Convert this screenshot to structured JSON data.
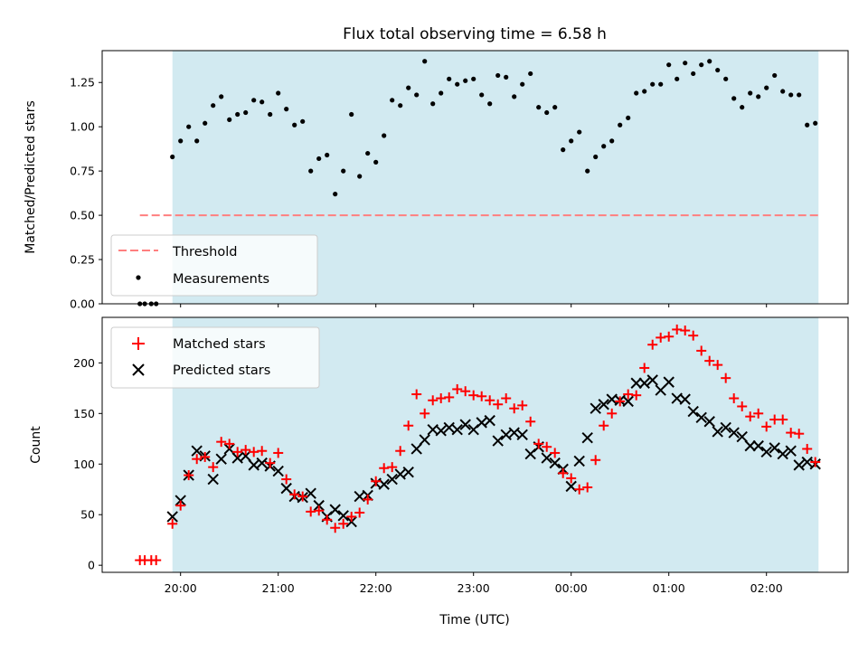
{
  "chart_data": [
    {
      "panel": "top",
      "type": "scatter",
      "title": "Flux total observing time = 6.58 h",
      "ylabel": "Matched/Predicted stars",
      "ylim": [
        0,
        1.43
      ],
      "yticks": [
        "0.00",
        "0.25",
        "0.50",
        "0.75",
        "1.00",
        "1.25"
      ],
      "ytick_values": [
        0,
        0.25,
        0.5,
        0.75,
        1.0,
        1.25
      ],
      "grid": false,
      "legend_position": "lower-left",
      "observing_window_color": "#add8e6",
      "threshold": {
        "name": "Threshold",
        "value": 0.5,
        "color": "#ff7f7f",
        "style": "dashed"
      },
      "series": [
        {
          "name": "Measurements",
          "color": "#000000",
          "x": [
            "19:35",
            "19:38",
            "19:42",
            "19:45",
            "19:55",
            "20:00",
            "20:05",
            "20:10",
            "20:15",
            "20:20",
            "20:25",
            "20:30",
            "20:35",
            "20:40",
            "20:45",
            "20:50",
            "20:55",
            "21:00",
            "21:05",
            "21:10",
            "21:15",
            "21:20",
            "21:25",
            "21:30",
            "21:35",
            "21:40",
            "21:45",
            "21:50",
            "21:55",
            "22:00",
            "22:05",
            "22:10",
            "22:15",
            "22:20",
            "22:25",
            "22:30",
            "22:35",
            "22:40",
            "22:45",
            "22:50",
            "22:55",
            "23:00",
            "23:05",
            "23:10",
            "23:15",
            "23:20",
            "23:25",
            "23:30",
            "23:35",
            "23:40",
            "23:45",
            "23:50",
            "23:55",
            "00:00",
            "00:05",
            "00:10",
            "00:15",
            "00:20",
            "00:25",
            "00:30",
            "00:35",
            "00:40",
            "00:45",
            "00:50",
            "00:55",
            "01:00",
            "01:05",
            "01:10",
            "01:15",
            "01:20",
            "01:25",
            "01:30",
            "01:35",
            "01:40",
            "01:45",
            "01:50",
            "01:55",
            "02:00",
            "02:05",
            "02:10",
            "02:15",
            "02:20",
            "02:25",
            "02:30"
          ],
          "y": [
            0.0,
            0.0,
            0.0,
            0.0,
            0.83,
            0.92,
            1.0,
            0.92,
            1.02,
            1.12,
            1.17,
            1.04,
            1.07,
            1.08,
            1.15,
            1.14,
            1.07,
            1.19,
            1.1,
            1.01,
            1.03,
            0.75,
            0.82,
            0.84,
            0.62,
            0.75,
            1.07,
            0.72,
            0.85,
            0.8,
            0.95,
            1.15,
            1.12,
            1.22,
            1.18,
            1.37,
            1.13,
            1.19,
            1.27,
            1.24,
            1.26,
            1.27,
            1.18,
            1.13,
            1.29,
            1.28,
            1.17,
            1.24,
            1.3,
            1.11,
            1.08,
            1.11,
            0.87,
            0.92,
            0.97,
            0.75,
            0.83,
            0.89,
            0.92,
            1.01,
            1.05,
            1.19,
            1.2,
            1.24,
            1.24,
            1.35,
            1.27,
            1.36,
            1.3,
            1.35,
            1.37,
            1.32,
            1.27,
            1.16,
            1.11,
            1.19,
            1.17,
            1.22,
            1.29,
            1.2,
            1.18,
            1.18,
            1.01,
            1.02
          ]
        }
      ]
    },
    {
      "panel": "bottom",
      "type": "scatter",
      "xlabel": "Time (UTC)",
      "ylabel": "Count",
      "ylim": [
        -7,
        245
      ],
      "yticks": [
        "0",
        "50",
        "100",
        "150",
        "200"
      ],
      "ytick_values": [
        0,
        50,
        100,
        150,
        200
      ],
      "xticks": [
        "20:00",
        "21:00",
        "22:00",
        "23:00",
        "00:00",
        "01:00",
        "02:00"
      ],
      "xtick_values": [
        "20:00",
        "21:00",
        "22:00",
        "23:00",
        "00:00",
        "01:00",
        "02:00"
      ],
      "grid": false,
      "legend_position": "upper-left",
      "series": [
        {
          "name": "Matched stars",
          "marker": "plus",
          "color": "#ff0000",
          "x": [
            "19:35",
            "19:38",
            "19:42",
            "19:45",
            "19:55",
            "20:00",
            "20:05",
            "20:10",
            "20:15",
            "20:20",
            "20:25",
            "20:30",
            "20:35",
            "20:40",
            "20:45",
            "20:50",
            "20:55",
            "21:00",
            "21:05",
            "21:10",
            "21:15",
            "21:20",
            "21:25",
            "21:30",
            "21:35",
            "21:40",
            "21:45",
            "21:50",
            "21:55",
            "22:00",
            "22:05",
            "22:10",
            "22:15",
            "22:20",
            "22:25",
            "22:30",
            "22:35",
            "22:40",
            "22:45",
            "22:50",
            "22:55",
            "23:00",
            "23:05",
            "23:10",
            "23:15",
            "23:20",
            "23:25",
            "23:30",
            "23:35",
            "23:40",
            "23:45",
            "23:50",
            "23:55",
            "00:00",
            "00:05",
            "00:10",
            "00:15",
            "00:20",
            "00:25",
            "00:30",
            "00:35",
            "00:40",
            "00:45",
            "00:50",
            "00:55",
            "01:00",
            "01:05",
            "01:10",
            "01:15",
            "01:20",
            "01:25",
            "01:30",
            "01:35",
            "01:40",
            "01:45",
            "01:50",
            "01:55",
            "02:00",
            "02:05",
            "02:10",
            "02:15",
            "02:20",
            "02:25",
            "02:30"
          ],
          "y": [
            5,
            5,
            5,
            5,
            41,
            59,
            89,
            105,
            107,
            97,
            122,
            120,
            112,
            114,
            112,
            113,
            101,
            111,
            85,
            70,
            68,
            53,
            54,
            45,
            37,
            41,
            48,
            52,
            65,
            83,
            96,
            97,
            113,
            138,
            169,
            150,
            163,
            165,
            166,
            174,
            172,
            168,
            167,
            163,
            159,
            165,
            155,
            158,
            142,
            120,
            117,
            111,
            91,
            86,
            75,
            77,
            104,
            138,
            150,
            162,
            169,
            168,
            195,
            218,
            225,
            226,
            233,
            232,
            227,
            212,
            202,
            198,
            185,
            165,
            157,
            147,
            150,
            137,
            144,
            144,
            131,
            130,
            115,
            102
          ]
        },
        {
          "name": "Predicted stars",
          "marker": "x",
          "color": "#000000",
          "x": [
            "19:55",
            "20:00",
            "20:05",
            "20:10",
            "20:15",
            "20:20",
            "20:25",
            "20:30",
            "20:35",
            "20:40",
            "20:45",
            "20:50",
            "20:55",
            "21:00",
            "21:05",
            "21:10",
            "21:15",
            "21:20",
            "21:25",
            "21:30",
            "21:35",
            "21:40",
            "21:45",
            "21:50",
            "21:55",
            "22:00",
            "22:05",
            "22:10",
            "22:15",
            "22:20",
            "22:25",
            "22:30",
            "22:35",
            "22:40",
            "22:45",
            "22:50",
            "22:55",
            "23:00",
            "23:05",
            "23:10",
            "23:15",
            "23:20",
            "23:25",
            "23:30",
            "23:35",
            "23:40",
            "23:45",
            "23:50",
            "23:55",
            "00:00",
            "00:05",
            "00:10",
            "00:15",
            "00:20",
            "00:25",
            "00:30",
            "00:35",
            "00:40",
            "00:45",
            "00:50",
            "00:55",
            "01:00",
            "01:05",
            "01:10",
            "01:15",
            "01:20",
            "01:25",
            "01:30",
            "01:35",
            "01:40",
            "01:45",
            "01:50",
            "01:55",
            "02:00",
            "02:05",
            "02:10",
            "02:15",
            "02:20",
            "02:25",
            "02:30"
          ],
          "y": [
            48,
            64,
            89,
            113,
            108,
            85,
            105,
            115,
            106,
            108,
            99,
            101,
            98,
            93,
            76,
            68,
            67,
            71,
            59,
            48,
            55,
            49,
            43,
            68,
            69,
            81,
            80,
            85,
            90,
            92,
            115,
            124,
            134,
            133,
            136,
            134,
            139,
            134,
            141,
            143,
            123,
            129,
            131,
            129,
            110,
            117,
            106,
            101,
            95,
            78,
            103,
            126,
            155,
            159,
            164,
            163,
            162,
            180,
            180,
            183,
            173,
            181,
            165,
            164,
            152,
            146,
            142,
            132,
            136,
            131,
            127,
            118,
            118,
            112,
            116,
            110,
            113,
            99,
            102,
            100
          ]
        }
      ]
    }
  ]
}
